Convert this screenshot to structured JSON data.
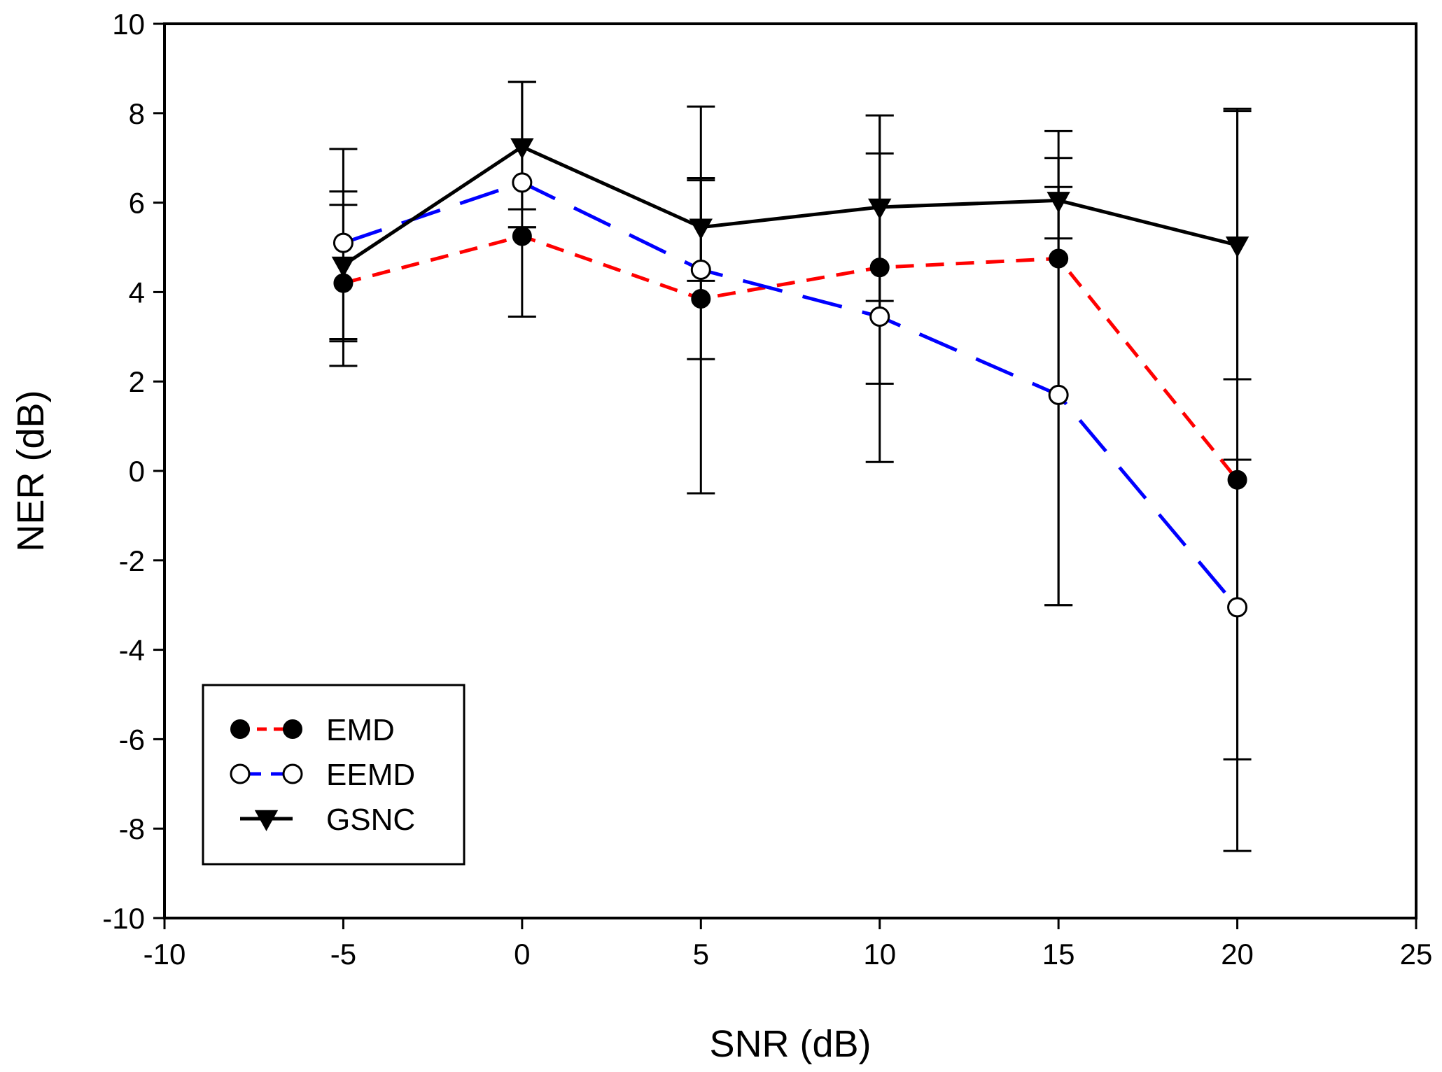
{
  "chart_data": {
    "type": "line",
    "title": "",
    "xlabel": "SNR (dB)",
    "ylabel": "NER (dB)",
    "xlim": [
      -10,
      25
    ],
    "ylim": [
      -10,
      10
    ],
    "xticks": [
      -10,
      -5,
      0,
      5,
      10,
      15,
      20,
      25
    ],
    "yticks": [
      -10,
      -8,
      -6,
      -4,
      -2,
      0,
      2,
      4,
      6,
      8,
      10
    ],
    "xtick_labels": [
      "-10",
      "-5",
      "0",
      "5",
      "10",
      "15",
      "20",
      "25"
    ],
    "ytick_labels": [
      "-10",
      "-8",
      "-6",
      "-4",
      "-2",
      "0",
      "2",
      "4",
      "6",
      "8",
      "10"
    ],
    "grid": false,
    "legend_position": "bottom-left",
    "x": [
      -5,
      0,
      5,
      10,
      15,
      20
    ],
    "series": [
      {
        "name": "EMD",
        "values": [
          4.2,
          5.25,
          3.85,
          4.55,
          4.75,
          -0.2
        ],
        "error_low": [
          2.9,
          3.45,
          -0.5,
          0.2,
          -3.0,
          -8.5
        ],
        "error_high": [
          5.95,
          5.45,
          6.5,
          7.95,
          7.0,
          0.25
        ],
        "color": "#ff0000",
        "line_style": "short-dash",
        "marker": "filled-circle"
      },
      {
        "name": "EEMD",
        "values": [
          5.1,
          6.45,
          4.5,
          3.45,
          1.7,
          -3.05
        ],
        "error_low": [
          2.35,
          5.45,
          2.5,
          1.95,
          -3.0,
          -6.45
        ],
        "error_high": [
          7.2,
          8.7,
          6.55,
          7.1,
          6.35,
          8.1
        ],
        "color": "#0000ff",
        "line_style": "long-dash",
        "marker": "open-circle"
      },
      {
        "name": "GSNC",
        "values": [
          4.6,
          7.25,
          5.45,
          5.9,
          6.05,
          5.05
        ],
        "error_low": [
          2.95,
          5.85,
          4.25,
          3.8,
          5.2,
          2.05
        ],
        "error_high": [
          6.25,
          8.7,
          8.15,
          7.95,
          7.6,
          8.05
        ],
        "color": "#000000",
        "line_style": "solid",
        "marker": "filled-triangle-down"
      }
    ]
  }
}
